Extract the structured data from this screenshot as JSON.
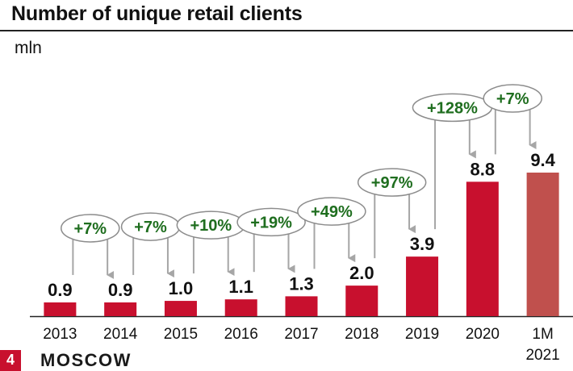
{
  "header": {
    "title": "Number of unique retail clients",
    "unit": "mln"
  },
  "logo": {
    "mark": "4",
    "text": "MOSCOW"
  },
  "chart_data": {
    "type": "bar",
    "title": "Number of unique retail clients",
    "ylabel": "mln",
    "categories": [
      "2013",
      "2014",
      "2015",
      "2016",
      "2017",
      "2018",
      "2019",
      "2020",
      "1M\n2021"
    ],
    "values": [
      0.9,
      0.9,
      1.0,
      1.1,
      1.3,
      2.0,
      3.9,
      8.8,
      9.4
    ],
    "value_labels": [
      "0.9",
      "0.9",
      "1.0",
      "1.1",
      "1.3",
      "2.0",
      "3.9",
      "8.8",
      "9.4"
    ],
    "bar_colors": [
      "#c8102e",
      "#c8102e",
      "#c8102e",
      "#c8102e",
      "#c8102e",
      "#c8102e",
      "#c8102e",
      "#c8102e",
      "#c0504d"
    ],
    "growth_annotations": [
      {
        "from": 0,
        "to": 1,
        "label": "+7%"
      },
      {
        "from": 1,
        "to": 2,
        "label": "+7%"
      },
      {
        "from": 2,
        "to": 3,
        "label": "+10%"
      },
      {
        "from": 3,
        "to": 4,
        "label": "+19%"
      },
      {
        "from": 4,
        "to": 5,
        "label": "+49%"
      },
      {
        "from": 5,
        "to": 6,
        "label": "+97%"
      },
      {
        "from": 6,
        "to": 7,
        "label": "+128%"
      },
      {
        "from": 7,
        "to": 8,
        "label": "+7%"
      }
    ],
    "annotation_text_color": "#1f6e1f",
    "arrow_color": "#a6a6a6",
    "grid": false,
    "legend": "none"
  }
}
